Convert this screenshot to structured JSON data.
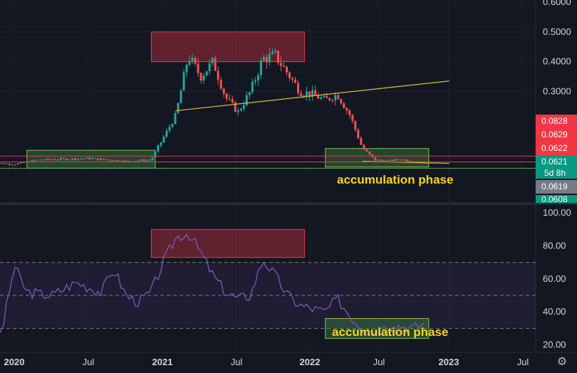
{
  "chart_data": [
    {
      "type": "candlestick",
      "panel": "price",
      "x_axis_labels": [
        "2020",
        "Jul",
        "2021",
        "Jul",
        "2022",
        "Jul",
        "2023",
        "Jul"
      ],
      "y_ticks": [
        "0.6000",
        "0.5000",
        "0.4000",
        "0.3000"
      ],
      "price_tags": [
        {
          "text": "0.0828",
          "color": "#f23645"
        },
        {
          "text": "0.0629",
          "color": "#f23645"
        },
        {
          "text": "0.0622",
          "color": "#f23645"
        },
        {
          "text": "0.0621",
          "color": "#089981"
        },
        {
          "text": "0.0619",
          "color": "#787b86"
        },
        {
          "text": "0.0608",
          "color": "#089981"
        }
      ],
      "countdown": "5d 8h",
      "annotation": "accumulation phase",
      "series": [
        {
          "date": "2019-11",
          "close": 0.06
        },
        {
          "date": "2020-01",
          "close": 0.055
        },
        {
          "date": "2020-03",
          "close": 0.07
        },
        {
          "date": "2020-07",
          "close": 0.075
        },
        {
          "date": "2020-10",
          "close": 0.065
        },
        {
          "date": "2020-12",
          "close": 0.07
        },
        {
          "date": "2021-02",
          "close": 0.22
        },
        {
          "date": "2021-03",
          "close": 0.42
        },
        {
          "date": "2021-04",
          "close": 0.35
        },
        {
          "date": "2021-05",
          "close": 0.4
        },
        {
          "date": "2021-06",
          "close": 0.28
        },
        {
          "date": "2021-07",
          "close": 0.23
        },
        {
          "date": "2021-08",
          "close": 0.3
        },
        {
          "date": "2021-09",
          "close": 0.41
        },
        {
          "date": "2021-10",
          "close": 0.42
        },
        {
          "date": "2021-11",
          "close": 0.36
        },
        {
          "date": "2021-12",
          "close": 0.3
        },
        {
          "date": "2022-01",
          "close": 0.29
        },
        {
          "date": "2022-02",
          "close": 0.27
        },
        {
          "date": "2022-03",
          "close": 0.29
        },
        {
          "date": "2022-04",
          "close": 0.22
        },
        {
          "date": "2022-05",
          "close": 0.11
        },
        {
          "date": "2022-06",
          "close": 0.07
        },
        {
          "date": "2022-07",
          "close": 0.065
        },
        {
          "date": "2022-08",
          "close": 0.072
        },
        {
          "date": "2022-09",
          "close": 0.066
        },
        {
          "date": "2022-10",
          "close": 0.062
        }
      ]
    },
    {
      "type": "line",
      "panel": "rsi",
      "y_ticks": [
        "100.00",
        "80.00",
        "60.00",
        "40.00",
        "20.00"
      ],
      "reference_lines": [
        30,
        50,
        70
      ],
      "annotation": "accumulation phase",
      "series": [
        {
          "date": "2019-11",
          "value": 22
        },
        {
          "date": "2019-12",
          "value": 28
        },
        {
          "date": "2020-01",
          "value": 68
        },
        {
          "date": "2020-02",
          "value": 52
        },
        {
          "date": "2020-04",
          "value": 50
        },
        {
          "date": "2020-06",
          "value": 58
        },
        {
          "date": "2020-08",
          "value": 52
        },
        {
          "date": "2020-09",
          "value": 66
        },
        {
          "date": "2020-10",
          "value": 50
        },
        {
          "date": "2020-11",
          "value": 46
        },
        {
          "date": "2020-12",
          "value": 52
        },
        {
          "date": "2021-01",
          "value": 70
        },
        {
          "date": "2021-02",
          "value": 85
        },
        {
          "date": "2021-03",
          "value": 88
        },
        {
          "date": "2021-04",
          "value": 76
        },
        {
          "date": "2021-05",
          "value": 62
        },
        {
          "date": "2021-06",
          "value": 52
        },
        {
          "date": "2021-07",
          "value": 48
        },
        {
          "date": "2021-08",
          "value": 50
        },
        {
          "date": "2021-09",
          "value": 72
        },
        {
          "date": "2021-10",
          "value": 62
        },
        {
          "date": "2021-11",
          "value": 50
        },
        {
          "date": "2021-12",
          "value": 44
        },
        {
          "date": "2022-01",
          "value": 42
        },
        {
          "date": "2022-02",
          "value": 40
        },
        {
          "date": "2022-03",
          "value": 48
        },
        {
          "date": "2022-04",
          "value": 38
        },
        {
          "date": "2022-05",
          "value": 30
        },
        {
          "date": "2022-06",
          "value": 28
        },
        {
          "date": "2022-07",
          "value": 31
        },
        {
          "date": "2022-08",
          "value": 32
        },
        {
          "date": "2022-09",
          "value": 30
        },
        {
          "date": "2022-10",
          "value": 33
        }
      ]
    }
  ],
  "settings_icon": "gear-icon"
}
